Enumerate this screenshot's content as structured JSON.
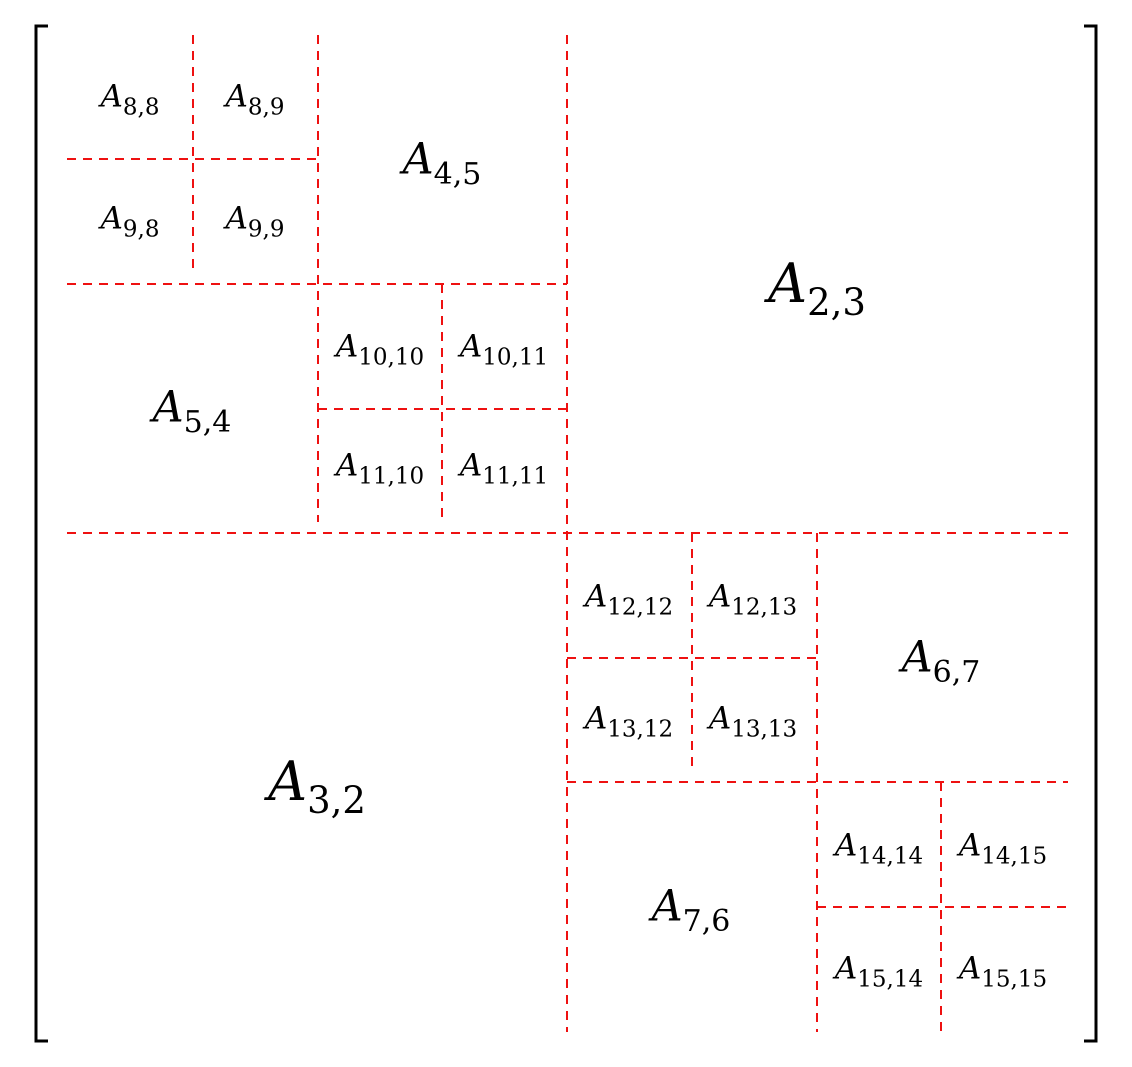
{
  "matrix": {
    "variable": "A",
    "line_color": "#ee1111",
    "blocks": [
      {
        "name": "block-2-3",
        "sub": "2,3",
        "level": 1
      },
      {
        "name": "block-3-2",
        "sub": "3,2",
        "level": 1
      },
      {
        "name": "block-4-5",
        "sub": "4,5",
        "level": 2
      },
      {
        "name": "block-5-4",
        "sub": "5,4",
        "level": 2
      },
      {
        "name": "block-6-7",
        "sub": "6,7",
        "level": 2
      },
      {
        "name": "block-7-6",
        "sub": "7,6",
        "level": 2
      },
      {
        "name": "block-8-8",
        "sub": "8,8",
        "level": 3
      },
      {
        "name": "block-8-9",
        "sub": "8,9",
        "level": 3
      },
      {
        "name": "block-9-8",
        "sub": "9,8",
        "level": 3
      },
      {
        "name": "block-9-9",
        "sub": "9,9",
        "level": 3
      },
      {
        "name": "block-10-10",
        "sub": "10,10",
        "level": 3
      },
      {
        "name": "block-10-11",
        "sub": "10,11",
        "level": 3
      },
      {
        "name": "block-11-10",
        "sub": "11,10",
        "level": 3
      },
      {
        "name": "block-11-11",
        "sub": "11,11",
        "level": 3
      },
      {
        "name": "block-12-12",
        "sub": "12,12",
        "level": 3
      },
      {
        "name": "block-12-13",
        "sub": "12,13",
        "level": 3
      },
      {
        "name": "block-13-12",
        "sub": "13,12",
        "level": 3
      },
      {
        "name": "block-13-13",
        "sub": "13,13",
        "level": 3
      },
      {
        "name": "block-14-14",
        "sub": "14,14",
        "level": 3
      },
      {
        "name": "block-14-15",
        "sub": "14,15",
        "level": 3
      },
      {
        "name": "block-15-14",
        "sub": "15,14",
        "level": 3
      },
      {
        "name": "block-15-15",
        "sub": "15,15",
        "level": 3
      }
    ]
  }
}
